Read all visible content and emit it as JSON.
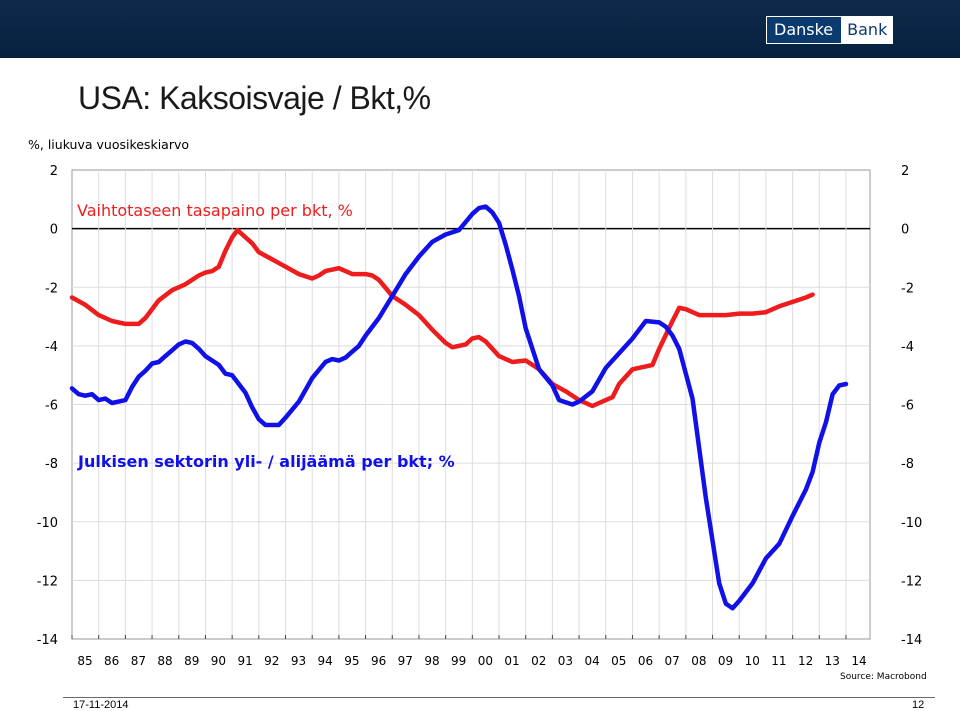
{
  "header": {
    "logo_part1": "Danske",
    "logo_part2": "Bank",
    "title": "USA: Kaksoisvaje / Bkt,%",
    "subtitle": "%, liukuva vuosikeskiarvo"
  },
  "chart_data": {
    "type": "line",
    "x_tick_labels": [
      "85",
      "86",
      "87",
      "88",
      "89",
      "90",
      "91",
      "92",
      "93",
      "94",
      "95",
      "96",
      "97",
      "98",
      "99",
      "00",
      "01",
      "02",
      "03",
      "04",
      "05",
      "06",
      "07",
      "08",
      "09",
      "10",
      "11",
      "12",
      "13",
      "14"
    ],
    "xlim": [
      1985,
      2014.9
    ],
    "ylim": [
      -14,
      2
    ],
    "y_ticks": [
      2,
      0,
      -2,
      -4,
      -6,
      -8,
      -10,
      -12,
      -14
    ],
    "grid": true,
    "series": [
      {
        "name": "Vaihtotaseen tasapaino per bkt, %",
        "color": "#ee1c1c",
        "points": [
          [
            1985.0,
            -2.35
          ],
          [
            1985.5,
            -2.6
          ],
          [
            1986.0,
            -2.95
          ],
          [
            1986.5,
            -3.15
          ],
          [
            1987.0,
            -3.25
          ],
          [
            1987.5,
            -3.25
          ],
          [
            1987.75,
            -3.05
          ],
          [
            1988.25,
            -2.45
          ],
          [
            1988.75,
            -2.1
          ],
          [
            1989.25,
            -1.9
          ],
          [
            1989.75,
            -1.6
          ],
          [
            1990.0,
            -1.5
          ],
          [
            1990.25,
            -1.45
          ],
          [
            1990.5,
            -1.3
          ],
          [
            1990.75,
            -0.75
          ],
          [
            1991.0,
            -0.3
          ],
          [
            1991.2,
            -0.05
          ],
          [
            1991.5,
            -0.3
          ],
          [
            1991.75,
            -0.5
          ],
          [
            1992.0,
            -0.8
          ],
          [
            1992.5,
            -1.05
          ],
          [
            1993.0,
            -1.3
          ],
          [
            1993.5,
            -1.55
          ],
          [
            1994.0,
            -1.7
          ],
          [
            1994.25,
            -1.6
          ],
          [
            1994.5,
            -1.45
          ],
          [
            1995.0,
            -1.35
          ],
          [
            1995.5,
            -1.55
          ],
          [
            1996.0,
            -1.55
          ],
          [
            1996.25,
            -1.6
          ],
          [
            1996.5,
            -1.75
          ],
          [
            1997.0,
            -2.3
          ],
          [
            1997.5,
            -2.6
          ],
          [
            1998.0,
            -2.95
          ],
          [
            1998.5,
            -3.45
          ],
          [
            1999.0,
            -3.9
          ],
          [
            1999.25,
            -4.05
          ],
          [
            1999.75,
            -3.95
          ],
          [
            2000.0,
            -3.75
          ],
          [
            2000.25,
            -3.7
          ],
          [
            2000.5,
            -3.85
          ],
          [
            2000.75,
            -4.1
          ],
          [
            2001.0,
            -4.35
          ],
          [
            2001.5,
            -4.55
          ],
          [
            2002.0,
            -4.5
          ],
          [
            2002.5,
            -4.8
          ],
          [
            2003.0,
            -5.3
          ],
          [
            2003.5,
            -5.55
          ],
          [
            2004.0,
            -5.85
          ],
          [
            2004.5,
            -6.05
          ],
          [
            2004.75,
            -5.95
          ],
          [
            2005.0,
            -5.85
          ],
          [
            2005.25,
            -5.75
          ],
          [
            2005.5,
            -5.3
          ],
          [
            2006.0,
            -4.8
          ],
          [
            2006.5,
            -4.7
          ],
          [
            2006.75,
            -4.65
          ],
          [
            2007.0,
            -4.1
          ],
          [
            2007.5,
            -3.15
          ],
          [
            2007.75,
            -2.7
          ],
          [
            2008.0,
            -2.75
          ],
          [
            2008.5,
            -2.95
          ],
          [
            2009.0,
            -2.95
          ],
          [
            2009.5,
            -2.95
          ],
          [
            2010.0,
            -2.9
          ],
          [
            2010.5,
            -2.9
          ],
          [
            2011.0,
            -2.85
          ],
          [
            2011.5,
            -2.65
          ],
          [
            2012.0,
            -2.5
          ],
          [
            2012.5,
            -2.35
          ],
          [
            2012.75,
            -2.25
          ]
        ]
      },
      {
        "name": "Julkisen sektorin yli- / alijäämä per bkt; %",
        "color": "#1010e8",
        "points": [
          [
            1985.0,
            -5.45
          ],
          [
            1985.25,
            -5.65
          ],
          [
            1985.5,
            -5.7
          ],
          [
            1985.75,
            -5.65
          ],
          [
            1986.0,
            -5.85
          ],
          [
            1986.25,
            -5.8
          ],
          [
            1986.5,
            -5.95
          ],
          [
            1986.75,
            -5.9
          ],
          [
            1987.0,
            -5.85
          ],
          [
            1987.25,
            -5.4
          ],
          [
            1987.5,
            -5.05
          ],
          [
            1987.75,
            -4.85
          ],
          [
            1988.0,
            -4.6
          ],
          [
            1988.25,
            -4.55
          ],
          [
            1988.5,
            -4.35
          ],
          [
            1988.75,
            -4.15
          ],
          [
            1989.0,
            -3.95
          ],
          [
            1989.25,
            -3.85
          ],
          [
            1989.5,
            -3.9
          ],
          [
            1989.75,
            -4.1
          ],
          [
            1990.0,
            -4.35
          ],
          [
            1990.5,
            -4.65
          ],
          [
            1990.75,
            -4.95
          ],
          [
            1991.0,
            -5.0
          ],
          [
            1991.5,
            -5.6
          ],
          [
            1991.75,
            -6.1
          ],
          [
            1992.0,
            -6.5
          ],
          [
            1992.25,
            -6.7
          ],
          [
            1992.75,
            -6.7
          ],
          [
            1993.0,
            -6.45
          ],
          [
            1993.5,
            -5.9
          ],
          [
            1994.0,
            -5.1
          ],
          [
            1994.5,
            -4.55
          ],
          [
            1994.75,
            -4.45
          ],
          [
            1995.0,
            -4.5
          ],
          [
            1995.25,
            -4.4
          ],
          [
            1995.5,
            -4.2
          ],
          [
            1995.75,
            -4.0
          ],
          [
            1996.0,
            -3.65
          ],
          [
            1996.5,
            -3.05
          ],
          [
            1997.0,
            -2.3
          ],
          [
            1997.5,
            -1.55
          ],
          [
            1998.0,
            -0.95
          ],
          [
            1998.5,
            -0.45
          ],
          [
            1999.0,
            -0.2
          ],
          [
            1999.5,
            -0.05
          ],
          [
            2000.0,
            0.5
          ],
          [
            2000.25,
            0.7
          ],
          [
            2000.5,
            0.75
          ],
          [
            2000.75,
            0.55
          ],
          [
            2001.0,
            0.2
          ],
          [
            2001.25,
            -0.55
          ],
          [
            2001.5,
            -1.4
          ],
          [
            2001.75,
            -2.3
          ],
          [
            2002.0,
            -3.4
          ],
          [
            2002.5,
            -4.8
          ],
          [
            2003.0,
            -5.35
          ],
          [
            2003.25,
            -5.85
          ],
          [
            2003.75,
            -6.0
          ],
          [
            2004.0,
            -5.9
          ],
          [
            2004.5,
            -5.55
          ],
          [
            2004.75,
            -5.15
          ],
          [
            2005.0,
            -4.75
          ],
          [
            2005.5,
            -4.25
          ],
          [
            2006.0,
            -3.75
          ],
          [
            2006.5,
            -3.15
          ],
          [
            2007.0,
            -3.2
          ],
          [
            2007.25,
            -3.35
          ],
          [
            2007.5,
            -3.65
          ],
          [
            2007.75,
            -4.1
          ],
          [
            2008.25,
            -5.8
          ],
          [
            2008.75,
            -9.2
          ],
          [
            2009.25,
            -12.1
          ],
          [
            2009.5,
            -12.8
          ],
          [
            2009.75,
            -12.95
          ],
          [
            2010.0,
            -12.7
          ],
          [
            2010.5,
            -12.1
          ],
          [
            2011.0,
            -11.25
          ],
          [
            2011.5,
            -10.75
          ],
          [
            2012.0,
            -9.8
          ],
          [
            2012.5,
            -8.9
          ],
          [
            2012.75,
            -8.3
          ],
          [
            2013.0,
            -7.3
          ],
          [
            2013.25,
            -6.6
          ],
          [
            2013.5,
            -5.65
          ],
          [
            2013.75,
            -5.35
          ],
          [
            2014.0,
            -5.3
          ]
        ]
      }
    ],
    "series_label_1": "Vaihtotaseen tasapaino per bkt, %",
    "series_label_2": "Julkisen sektorin yli- / alijäämä per bkt; %"
  },
  "footer": {
    "source": "Source: Macrobond",
    "date": "17-11-2014",
    "page": "12"
  }
}
